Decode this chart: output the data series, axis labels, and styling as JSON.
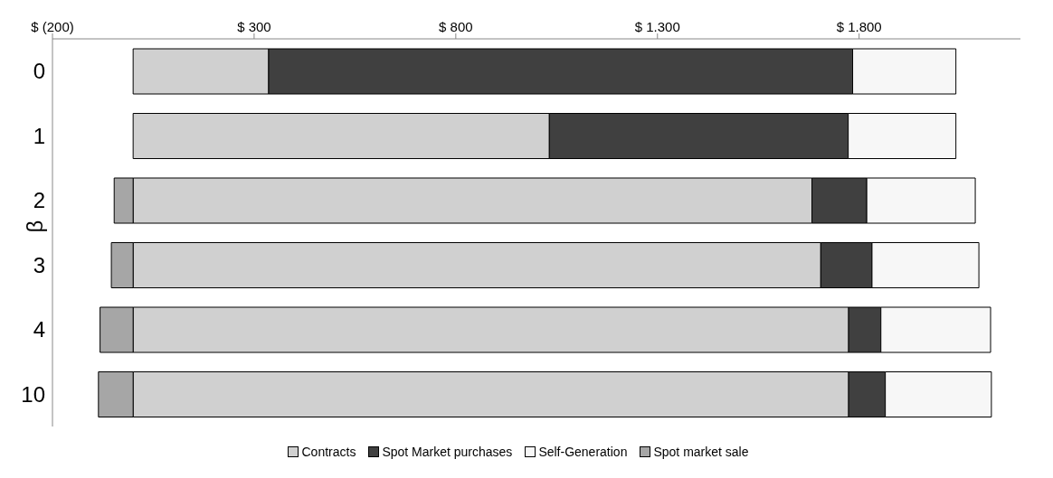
{
  "chart_data": {
    "type": "bar",
    "orientation": "horizontal",
    "stacked": true,
    "ylabel": "β",
    "categories": [
      "0",
      "1",
      "2",
      "3",
      "4",
      "10"
    ],
    "series": [
      {
        "name": "Contracts",
        "color": "#d0d0d0",
        "values": [
          336,
          1032,
          1683,
          1705,
          1774,
          1774
        ]
      },
      {
        "name": "Spot Market purchases",
        "color": "#404040",
        "values": [
          1448,
          741,
          136,
          127,
          80,
          91
        ]
      },
      {
        "name": "Self-Generation",
        "color": "#f7f7f7",
        "values": [
          256,
          267,
          269,
          265,
          272,
          263
        ]
      },
      {
        "name": "Spot market sale",
        "color": "#a6a6a6",
        "values": [
          null,
          null,
          -47,
          -54,
          -82,
          -86
        ]
      }
    ],
    "xlim": [
      -200,
      2200
    ],
    "xticks": [
      {
        "value": -200,
        "label": "$ (200)"
      },
      {
        "value": 300,
        "label": "$ 300"
      },
      {
        "value": 800,
        "label": "$ 800"
      },
      {
        "value": 1300,
        "label": "$ 1.300"
      },
      {
        "value": 1800,
        "label": "$ 1.800"
      }
    ],
    "grid": false,
    "legend": "bottom"
  }
}
